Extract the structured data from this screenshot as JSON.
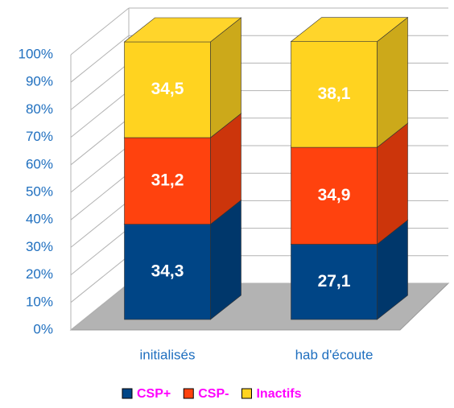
{
  "chart_data": {
    "type": "stacked_bar_3d",
    "categories": [
      "initialisés",
      "hab d'écoute"
    ],
    "series": [
      {
        "name": "CSP+",
        "color": "#004586",
        "values": [
          34.3,
          27.1
        ],
        "value_labels": [
          "34,3",
          "27,1"
        ]
      },
      {
        "name": "CSP-",
        "color": "#ff420e",
        "values": [
          31.2,
          34.9
        ],
        "value_labels": [
          "31,2",
          "34,9"
        ]
      },
      {
        "name": "Inactifs",
        "color": "#ffd320",
        "values": [
          34.5,
          38.1
        ],
        "value_labels": [
          "34,5",
          "38,1"
        ]
      }
    ],
    "ylim": [
      0,
      100
    ],
    "yticks": [
      {
        "value": 0,
        "label": "0%"
      },
      {
        "value": 10,
        "label": "10%"
      },
      {
        "value": 20,
        "label": "20%"
      },
      {
        "value": 30,
        "label": "30%"
      },
      {
        "value": 40,
        "label": "40%"
      },
      {
        "value": 50,
        "label": "50%"
      },
      {
        "value": 60,
        "label": "60%"
      },
      {
        "value": 70,
        "label": "70%"
      },
      {
        "value": 80,
        "label": "80%"
      },
      {
        "value": 90,
        "label": "90%"
      },
      {
        "value": 100,
        "label": "100%"
      }
    ],
    "grid": true,
    "legend": "bottom"
  }
}
